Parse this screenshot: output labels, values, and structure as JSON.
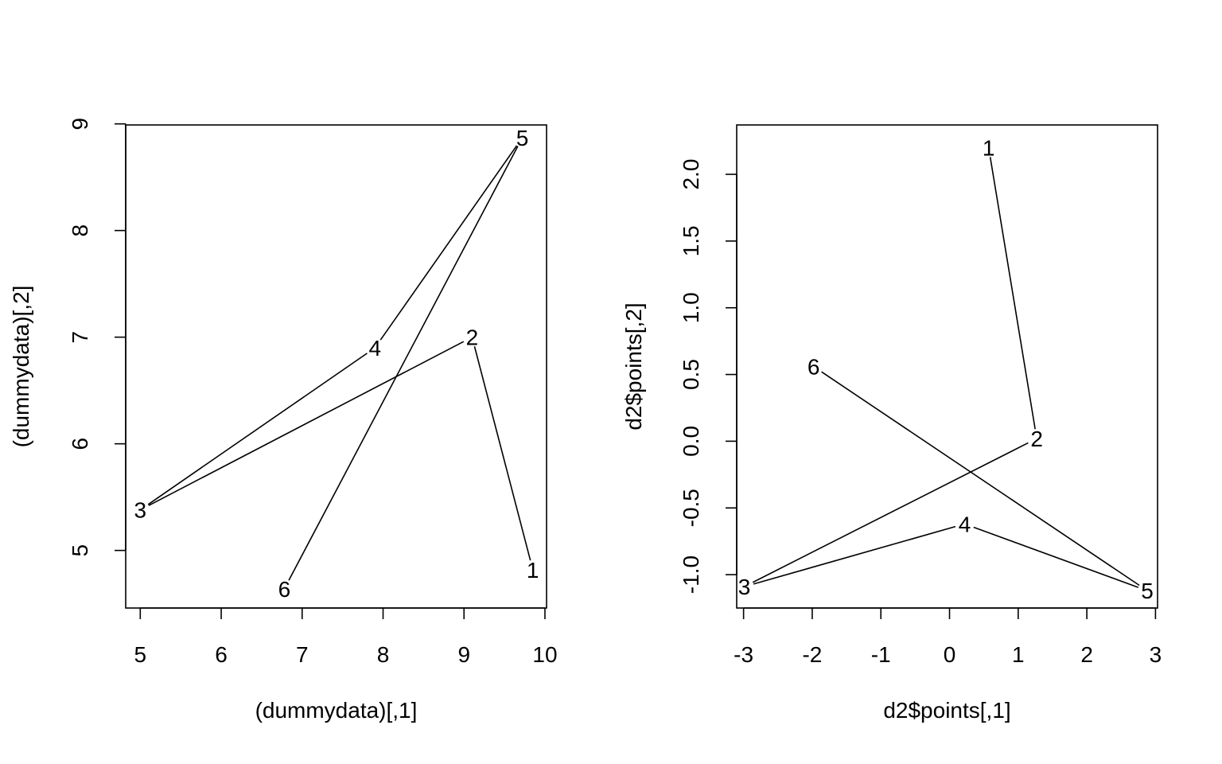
{
  "chart_data": [
    {
      "type": "line",
      "xlabel": "(dummydata)[,1]",
      "ylabel": "(dummydata)[,2]",
      "xlim": [
        4.82,
        10.02
      ],
      "ylim": [
        4.46,
        8.99
      ],
      "xticks": [
        5,
        6,
        7,
        8,
        9,
        10
      ],
      "yticks": [
        5,
        6,
        7,
        8,
        9
      ],
      "grid": false,
      "points": [
        {
          "label": "1",
          "x": 9.85,
          "y": 4.82
        },
        {
          "label": "2",
          "x": 9.1,
          "y": 7.0
        },
        {
          "label": "3",
          "x": 5.0,
          "y": 5.38
        },
        {
          "label": "4",
          "x": 7.9,
          "y": 6.9
        },
        {
          "label": "5",
          "x": 9.72,
          "y": 8.87
        },
        {
          "label": "6",
          "x": 6.78,
          "y": 4.64
        }
      ]
    },
    {
      "type": "line",
      "xlabel": "d2$points[,1]",
      "ylabel": "d2$points[,2]",
      "xlim": [
        -3.1,
        3.03
      ],
      "ylim": [
        -1.25,
        2.37
      ],
      "xticks": [
        -3,
        -2,
        -1,
        0,
        1,
        2,
        3
      ],
      "yticks": [
        -1.0,
        -0.5,
        0.0,
        0.5,
        1.0,
        1.5,
        2.0
      ],
      "ytick_labels": [
        "-1.0",
        "-0.5",
        "0.0",
        "0.5",
        "1.0",
        "1.5",
        "2.0"
      ],
      "grid": false,
      "points": [
        {
          "label": "1",
          "x": 0.57,
          "y": 2.2
        },
        {
          "label": "2",
          "x": 1.27,
          "y": 0.02
        },
        {
          "label": "3",
          "x": -2.99,
          "y": -1.09
        },
        {
          "label": "4",
          "x": 0.22,
          "y": -0.62
        },
        {
          "label": "5",
          "x": 2.88,
          "y": -1.12
        },
        {
          "label": "6",
          "x": -1.98,
          "y": 0.56
        }
      ]
    }
  ]
}
